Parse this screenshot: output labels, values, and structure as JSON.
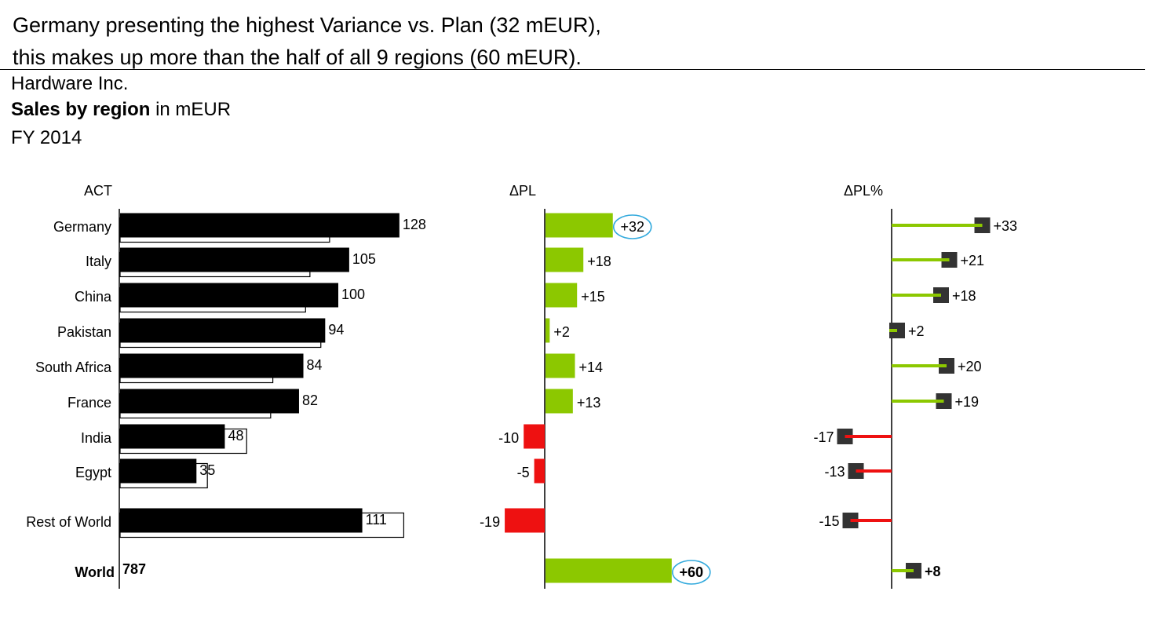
{
  "headline": {
    "line1": "Germany presenting the highest Variance vs. Plan (32 mEUR),",
    "line2": "this makes up more than the half of all 9 regions (60 mEUR)."
  },
  "company": "Hardware Inc.",
  "measure": {
    "bold": "Sales by region",
    "rest": " in mEUR"
  },
  "period": "FY 2014",
  "colors": {
    "positive": "#8cc800",
    "negative": "#ee1111",
    "actual": "#000000",
    "marker": "#333333",
    "highlight": "#33aadd"
  },
  "chart_data": [
    {
      "type": "bar",
      "header": "ACT",
      "categories": [
        "Germany",
        "Italy",
        "China",
        "Pakistan",
        "South Africa",
        "France",
        "India",
        "Egypt",
        "Rest of World"
      ],
      "series": [
        {
          "name": "ACT",
          "values": [
            128,
            105,
            100,
            94,
            84,
            82,
            48,
            35,
            111
          ]
        },
        {
          "name": "PL",
          "values": [
            96,
            87,
            85,
            92,
            70,
            69,
            58,
            40,
            130
          ]
        }
      ],
      "value_labels": [
        "128",
        "105",
        "100",
        "94",
        "84",
        "82",
        "48",
        "35",
        "111"
      ],
      "total": {
        "category": "World",
        "value": 787,
        "label": "787"
      }
    },
    {
      "type": "bar",
      "header": "ΔPL",
      "categories": [
        "Germany",
        "Italy",
        "China",
        "Pakistan",
        "South Africa",
        "France",
        "India",
        "Egypt",
        "Rest of World",
        "World"
      ],
      "values": [
        32,
        18,
        15,
        2,
        14,
        13,
        -10,
        -5,
        -19,
        60
      ],
      "labels": [
        "+32",
        "+18",
        "+15",
        "+2",
        "+14",
        "+13",
        "-10",
        "-5",
        "-19",
        "+60"
      ],
      "highlighted": [
        "Germany",
        "World"
      ]
    },
    {
      "type": "bar",
      "header": "ΔPL%",
      "categories": [
        "Germany",
        "Italy",
        "China",
        "Pakistan",
        "South Africa",
        "France",
        "India",
        "Egypt",
        "Rest of World",
        "World"
      ],
      "values": [
        33,
        21,
        18,
        2,
        20,
        19,
        -17,
        -13,
        -15,
        8
      ],
      "labels": [
        "+33",
        "+21",
        "+18",
        "+2",
        "+20",
        "+19",
        "-17",
        "-13",
        "-15",
        "+8"
      ]
    }
  ]
}
